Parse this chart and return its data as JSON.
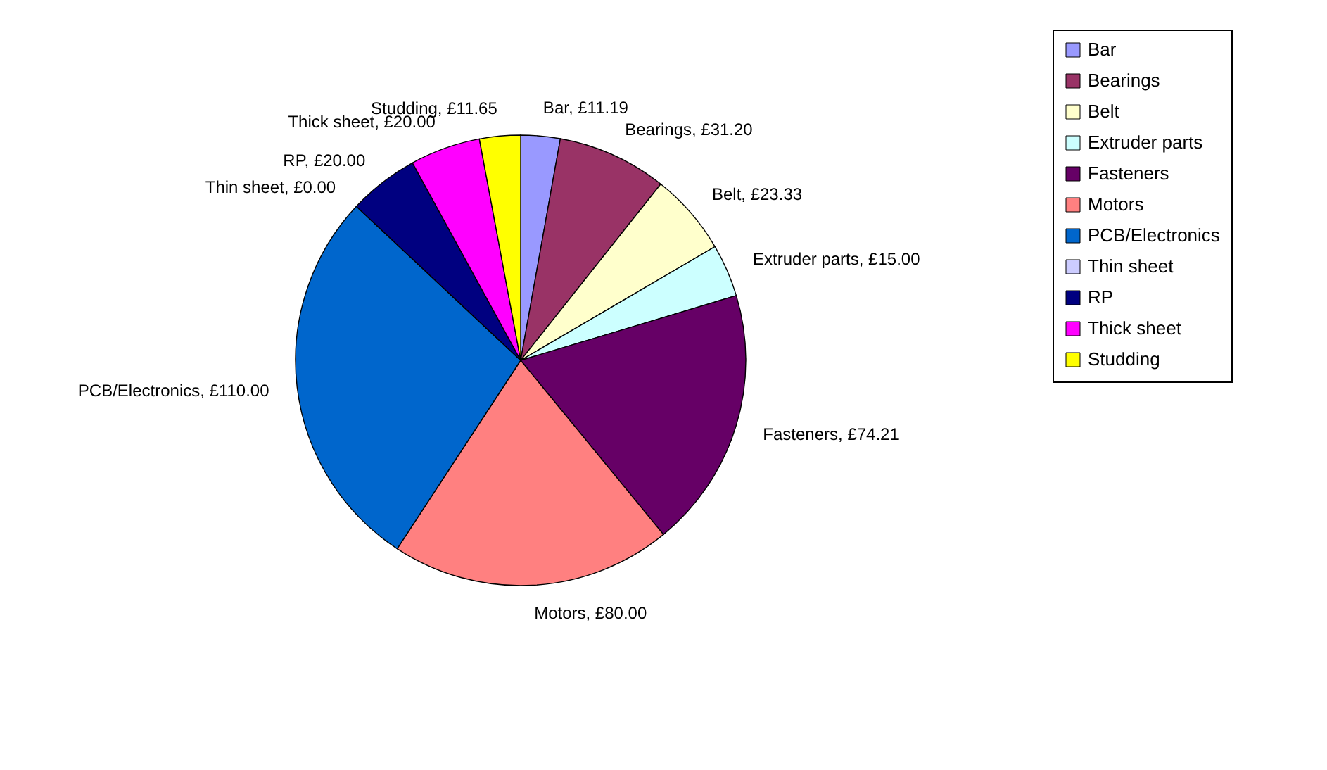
{
  "chart_data": {
    "type": "pie",
    "categories": [
      "Bar",
      "Bearings",
      "Belt",
      "Extruder parts",
      "Fasteners",
      "Motors",
      "PCB/Electronics",
      "Thin sheet",
      "RP",
      "Thick sheet",
      "Studding"
    ],
    "values": [
      11.19,
      31.2,
      23.33,
      15.0,
      74.21,
      80.0,
      110.0,
      0.0,
      20.0,
      20.0,
      11.65
    ],
    "colors": [
      "#9999ff",
      "#993366",
      "#ffffcc",
      "#ccffff",
      "#660066",
      "#ff8080",
      "#0066cc",
      "#ccccff",
      "#000080",
      "#ff00ff",
      "#ffff00"
    ],
    "value_labels": [
      "Bar, £11.19",
      "Bearings, £31.20",
      "Belt, £23.33",
      "Extruder parts, £15.00",
      "Fasteners, £74.21",
      "Motors, £80.00",
      "PCB/Electronics, £110.00",
      "Thin sheet, £0.00",
      "RP, £20.00",
      "Thick sheet, £20.00",
      "Studding, £11.65"
    ],
    "legend": "right"
  }
}
